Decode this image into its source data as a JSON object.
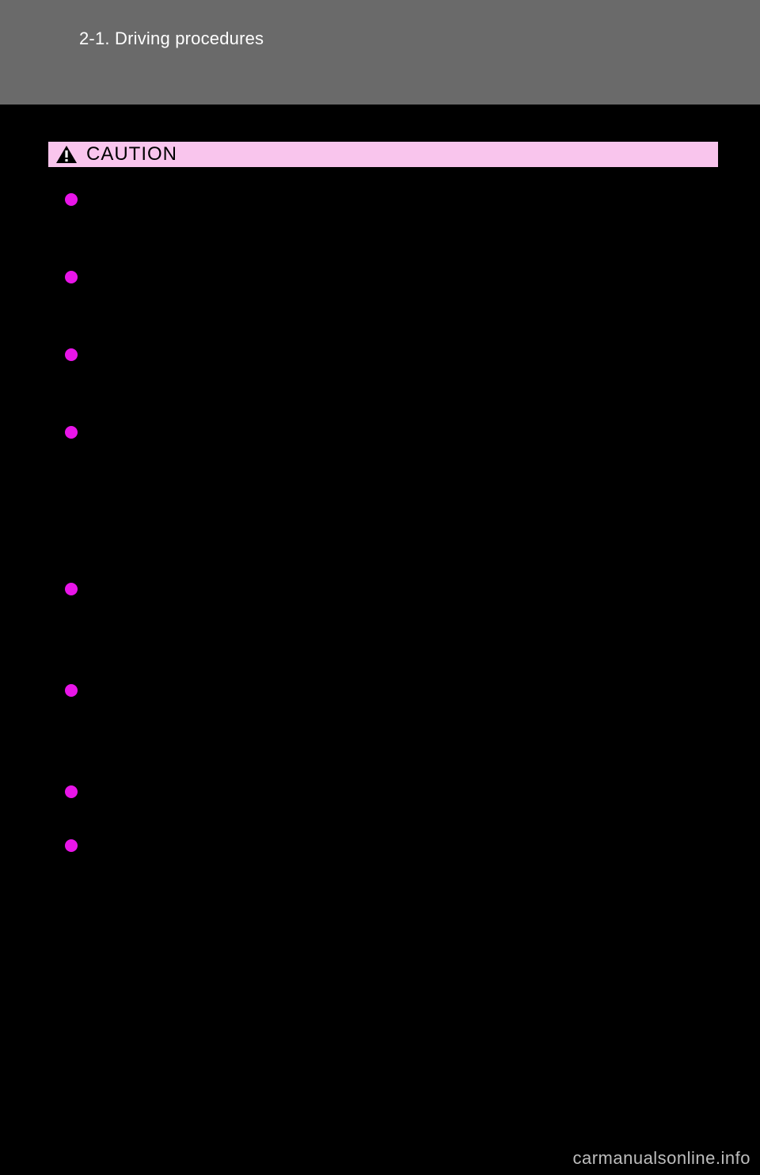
{
  "header": {
    "page_number": "",
    "section_title": "2-1. Driving procedures"
  },
  "caution": {
    "label": "CAUTION",
    "icon_bg": "#000000",
    "icon_fg": "#ffffff",
    "bar_bg": "#f9c5ed",
    "bar_border": "#000000"
  },
  "bullets": [
    {
      "text": "",
      "gap_before": 18
    },
    {
      "text": "",
      "gap_before": 78
    },
    {
      "text": "",
      "gap_before": 78
    },
    {
      "text": "",
      "gap_before": 78
    },
    {
      "text": "",
      "gap_before": 178
    },
    {
      "text": "",
      "gap_before": 108
    },
    {
      "text": "",
      "gap_before": 108
    },
    {
      "text": "",
      "gap_before": 48
    }
  ],
  "bullet_color": "#e815e8",
  "watermark": "carmanualsonline.info",
  "colors": {
    "header_band": "#6a6a6a",
    "page_bg": "#000000",
    "header_text": "#ffffff",
    "watermark_text": "#bdbdbd"
  }
}
